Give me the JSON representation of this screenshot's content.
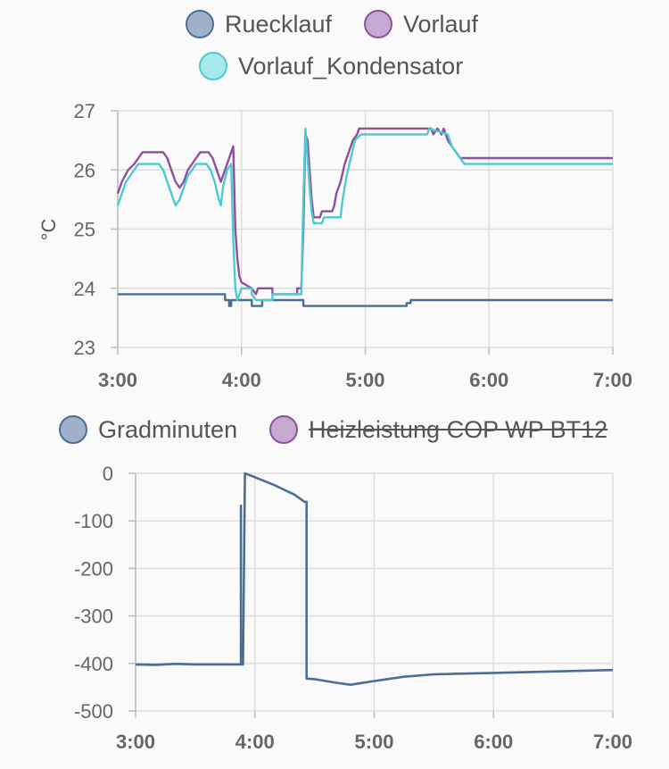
{
  "colors": {
    "ruecklauf": "#4b6e96",
    "vorlauf": "#8e4fa0",
    "kondensator": "#4ccbcf",
    "gradminuten": "#4b6e96",
    "heizleistung": "#8e4fa0"
  },
  "chart_data": [
    {
      "type": "line",
      "title": "",
      "xlabel": "",
      "ylabel": "°C",
      "xlim": [
        "3:00",
        "7:00"
      ],
      "ylim": [
        23,
        27
      ],
      "x_ticks": [
        "3:00",
        "4:00",
        "5:00",
        "6:00",
        "7:00"
      ],
      "y_ticks": [
        "23",
        "24",
        "25",
        "26",
        "27"
      ],
      "legend_position": "top",
      "grid": true,
      "series": [
        {
          "name": "Ruecklauf",
          "step": true,
          "points": [
            [
              "3:00",
              23.9
            ],
            [
              "3:52",
              23.9
            ],
            [
              "3:52",
              23.8
            ],
            [
              "3:54",
              23.8
            ],
            [
              "3:54",
              23.7
            ],
            [
              "3:55",
              23.7
            ],
            [
              "3:55",
              23.8
            ],
            [
              "4:05",
              23.8
            ],
            [
              "4:05",
              23.7
            ],
            [
              "4:10",
              23.7
            ],
            [
              "4:10",
              23.8
            ],
            [
              "4:30",
              23.8
            ],
            [
              "4:30",
              23.7
            ],
            [
              "5:20",
              23.7
            ],
            [
              "5:20",
              23.75
            ],
            [
              "5:22",
              23.75
            ],
            [
              "5:22",
              23.8
            ],
            [
              "7:00",
              23.8
            ]
          ]
        },
        {
          "name": "Vorlauf",
          "step": true,
          "points": [
            [
              "3:00",
              25.6
            ],
            [
              "3:02",
              25.8
            ],
            [
              "3:05",
              26.0
            ],
            [
              "3:08",
              26.1
            ],
            [
              "3:10",
              26.2
            ],
            [
              "3:12",
              26.3
            ],
            [
              "3:22",
              26.3
            ],
            [
              "3:24",
              26.2
            ],
            [
              "3:26",
              26.0
            ],
            [
              "3:28",
              25.8
            ],
            [
              "3:30",
              25.7
            ],
            [
              "3:32",
              25.8
            ],
            [
              "3:34",
              26.0
            ],
            [
              "3:36",
              26.1
            ],
            [
              "3:38",
              26.2
            ],
            [
              "3:40",
              26.3
            ],
            [
              "3:44",
              26.3
            ],
            [
              "3:46",
              26.2
            ],
            [
              "3:48",
              26.0
            ],
            [
              "3:50",
              25.8
            ],
            [
              "3:52",
              26.0
            ],
            [
              "3:54",
              26.2
            ],
            [
              "3:56",
              26.4
            ],
            [
              "3:57",
              25.0
            ],
            [
              "3:58",
              24.5
            ],
            [
              "3:59",
              24.2
            ],
            [
              "4:00",
              24.1
            ],
            [
              "4:05",
              24.0
            ],
            [
              "4:07",
              23.9
            ],
            [
              "4:08",
              24.0
            ],
            [
              "4:15",
              24.0
            ],
            [
              "4:15",
              23.9
            ],
            [
              "4:27",
              23.9
            ],
            [
              "4:27",
              24.0
            ],
            [
              "4:29",
              24.0
            ],
            [
              "4:30",
              25.0
            ],
            [
              "4:31",
              26.6
            ],
            [
              "4:32",
              26.5
            ],
            [
              "4:33",
              26.0
            ],
            [
              "4:34",
              25.5
            ],
            [
              "4:35",
              25.2
            ],
            [
              "4:38",
              25.2
            ],
            [
              "4:39",
              25.3
            ],
            [
              "4:44",
              25.3
            ],
            [
              "4:45",
              25.4
            ],
            [
              "4:46",
              25.6
            ],
            [
              "4:48",
              25.8
            ],
            [
              "4:50",
              26.1
            ],
            [
              "4:52",
              26.3
            ],
            [
              "4:54",
              26.5
            ],
            [
              "4:56",
              26.6
            ],
            [
              "4:57",
              26.7
            ],
            [
              "5:32",
              26.7
            ],
            [
              "5:33",
              26.6
            ],
            [
              "5:35",
              26.7
            ],
            [
              "5:37",
              26.6
            ],
            [
              "5:38",
              26.7
            ],
            [
              "5:40",
              26.5
            ],
            [
              "5:42",
              26.4
            ],
            [
              "5:44",
              26.3
            ],
            [
              "5:46",
              26.2
            ],
            [
              "7:00",
              26.2
            ]
          ]
        },
        {
          "name": "Vorlauf_Kondensator",
          "step": true,
          "points": [
            [
              "3:00",
              25.4
            ],
            [
              "3:02",
              25.6
            ],
            [
              "3:04",
              25.8
            ],
            [
              "3:06",
              25.9
            ],
            [
              "3:08",
              26.0
            ],
            [
              "3:10",
              26.1
            ],
            [
              "3:20",
              26.1
            ],
            [
              "3:22",
              26.0
            ],
            [
              "3:24",
              25.8
            ],
            [
              "3:26",
              25.6
            ],
            [
              "3:28",
              25.4
            ],
            [
              "3:30",
              25.5
            ],
            [
              "3:32",
              25.7
            ],
            [
              "3:34",
              25.9
            ],
            [
              "3:36",
              26.0
            ],
            [
              "3:38",
              26.1
            ],
            [
              "3:43",
              26.1
            ],
            [
              "3:45",
              26.0
            ],
            [
              "3:47",
              25.8
            ],
            [
              "3:49",
              25.5
            ],
            [
              "3:50",
              25.4
            ],
            [
              "3:51",
              25.7
            ],
            [
              "3:53",
              26.0
            ],
            [
              "3:55",
              26.1
            ],
            [
              "3:56",
              24.8
            ],
            [
              "3:57",
              24.0
            ],
            [
              "3:58",
              23.8
            ],
            [
              "3:59",
              23.9
            ],
            [
              "4:00",
              24.0
            ],
            [
              "4:05",
              24.0
            ],
            [
              "4:05",
              23.9
            ],
            [
              "4:07",
              23.8
            ],
            [
              "4:15",
              23.8
            ],
            [
              "4:15",
              23.9
            ],
            [
              "4:29",
              23.9
            ],
            [
              "4:30",
              25.5
            ],
            [
              "4:31",
              26.7
            ],
            [
              "4:32",
              26.2
            ],
            [
              "4:33",
              25.7
            ],
            [
              "4:34",
              25.3
            ],
            [
              "4:35",
              25.1
            ],
            [
              "4:39",
              25.1
            ],
            [
              "4:40",
              25.2
            ],
            [
              "4:48",
              25.2
            ],
            [
              "4:49",
              25.5
            ],
            [
              "4:51",
              25.9
            ],
            [
              "4:53",
              26.2
            ],
            [
              "4:55",
              26.5
            ],
            [
              "4:58",
              26.6
            ],
            [
              "5:30",
              26.6
            ],
            [
              "5:31",
              26.7
            ],
            [
              "5:40",
              26.6
            ],
            [
              "5:42",
              26.4
            ],
            [
              "5:44",
              26.3
            ],
            [
              "5:46",
              26.2
            ],
            [
              "5:48",
              26.1
            ],
            [
              "7:00",
              26.1
            ]
          ]
        }
      ]
    },
    {
      "type": "line",
      "title": "",
      "xlabel": "",
      "ylabel": "",
      "xlim": [
        "3:00",
        "7:00"
      ],
      "ylim": [
        -500,
        0
      ],
      "x_ticks": [
        "3:00",
        "4:00",
        "5:00",
        "6:00",
        "7:00"
      ],
      "y_ticks": [
        "0",
        "-100",
        "-200",
        "-300",
        "-400",
        "-500"
      ],
      "legend_position": "top",
      "grid": true,
      "series": [
        {
          "name": "Gradminuten",
          "points": [
            [
              "3:00",
              -402
            ],
            [
              "3:10",
              -403
            ],
            [
              "3:20",
              -401
            ],
            [
              "3:30",
              -402
            ],
            [
              "3:40",
              -402
            ],
            [
              "3:53",
              -402
            ],
            [
              "3:53",
              -68
            ],
            [
              "3:53",
              -402
            ],
            [
              "3:54",
              -402
            ],
            [
              "3:55",
              0
            ],
            [
              "4:00",
              -8
            ],
            [
              "4:10",
              -25
            ],
            [
              "4:20",
              -45
            ],
            [
              "4:25",
              -60
            ],
            [
              "4:26",
              -60
            ],
            [
              "4:26",
              -432
            ],
            [
              "4:30",
              -433
            ],
            [
              "4:40",
              -440
            ],
            [
              "4:48",
              -445
            ],
            [
              "5:00",
              -437
            ],
            [
              "5:15",
              -428
            ],
            [
              "5:30",
              -423
            ],
            [
              "6:00",
              -420
            ],
            [
              "6:30",
              -417
            ],
            [
              "7:00",
              -414
            ]
          ]
        },
        {
          "name": "Heizleistung COP WP BT12",
          "hidden": true,
          "points": []
        }
      ]
    }
  ]
}
